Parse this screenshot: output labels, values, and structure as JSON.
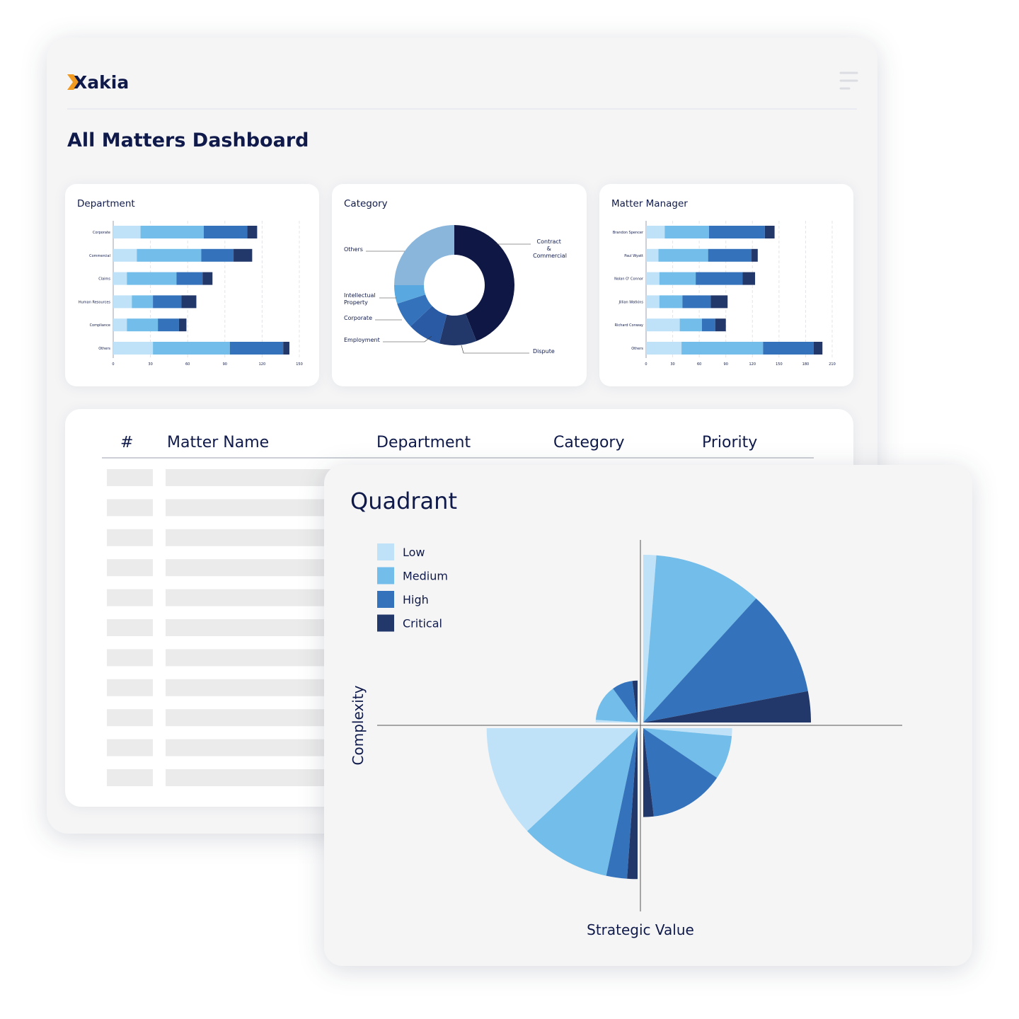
{
  "header": {
    "logo": "Xakia",
    "title": "All Matters Dashboard"
  },
  "table": {
    "columns": [
      "#",
      "Matter Name",
      "Department",
      "Category",
      "Priority"
    ]
  },
  "chart_data": [
    {
      "type": "hbar-stacked",
      "title": "Department",
      "categories": [
        "Corporate",
        "Commercial",
        "Claims",
        "Human Resources",
        "Compliance",
        "Others"
      ],
      "series": [
        {
          "color": "#bfe2f8",
          "values": [
            22,
            19,
            11,
            15,
            11,
            32
          ]
        },
        {
          "color": "#72bde9",
          "values": [
            51,
            52,
            40,
            17,
            25,
            62
          ]
        },
        {
          "color": "#3473bb",
          "values": [
            35,
            26,
            21,
            23,
            17,
            43
          ]
        },
        {
          "color": "#22386a",
          "values": [
            8,
            15,
            8,
            12,
            6,
            5
          ]
        }
      ],
      "xlim": [
        0,
        150
      ],
      "xticks": [
        0,
        30,
        60,
        90,
        120,
        150
      ],
      "grid": true
    },
    {
      "type": "donut",
      "title": "Category",
      "categories": [
        "Contract & Commercial",
        "Dispute",
        "Employment",
        "Corporate",
        "Intellectual Property",
        "Others"
      ],
      "values": [
        44,
        10,
        9,
        7,
        5,
        25
      ],
      "colors": [
        "#0f1744",
        "#22386a",
        "#2a5aa4",
        "#3473bb",
        "#5aa8e0",
        "#8ab6dc"
      ]
    },
    {
      "type": "hbar-stacked",
      "title": "Matter Manager",
      "categories": [
        "Brandon Spencer",
        "Paul Wyatt",
        "Nolan O' Connor",
        "Jillian Watkins",
        "Richard Conway",
        "Others"
      ],
      "series": [
        {
          "color": "#bfe2f8",
          "values": [
            21,
            14,
            15,
            15,
            38,
            40
          ]
        },
        {
          "color": "#72bde9",
          "values": [
            50,
            56,
            41,
            26,
            25,
            92
          ]
        },
        {
          "color": "#3473bb",
          "values": [
            63,
            49,
            53,
            32,
            15,
            57
          ]
        },
        {
          "color": "#22386a",
          "values": [
            11,
            7,
            14,
            19,
            12,
            10
          ]
        }
      ],
      "xlim": [
        0,
        210
      ],
      "xticks": [
        0,
        30,
        60,
        90,
        120,
        150,
        180,
        210
      ],
      "grid": true
    },
    {
      "type": "quadrant",
      "title": "Quadrant",
      "xlabel": "Strategic Value",
      "ylabel": "Complexity",
      "legend": "top-left",
      "series": [
        {
          "name": "Low",
          "color": "#bfe2f8",
          "values": [
            5,
            1,
            43,
            3
          ]
        },
        {
          "name": "Medium",
          "color": "#72bde9",
          "values": [
            42,
            14,
            35,
            17
          ]
        },
        {
          "name": "High",
          "color": "#3473bb",
          "values": [
            41,
            8,
            8,
            29
          ]
        },
        {
          "name": "Critical",
          "color": "#22386a",
          "values": [
            12,
            2,
            4,
            4
          ]
        }
      ]
    }
  ]
}
